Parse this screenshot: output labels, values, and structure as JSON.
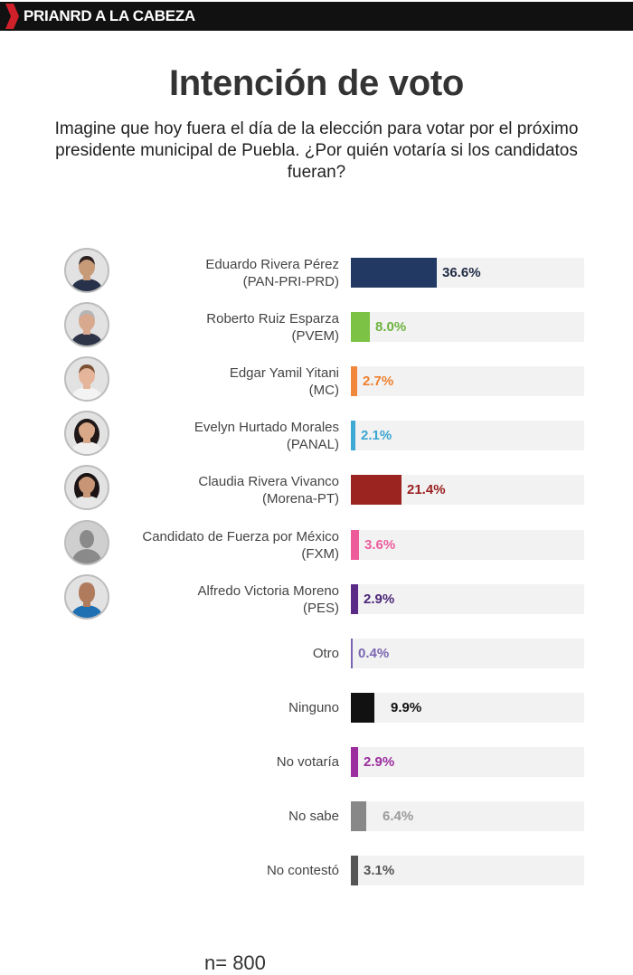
{
  "header": {
    "section_label": "PRIANRD A LA CABEZA"
  },
  "title": "Intención de voto",
  "question": "Imagine que hoy fuera el día de la elección para votar por el próximo presidente municipal de Puebla. ¿Por quién votaría si los candidatos fueran?",
  "footnote": "n= 800",
  "colors": {
    "accent": "#d0202a",
    "header_bg": "#111111",
    "track": "#f2f2f2"
  },
  "chart_data": {
    "type": "bar",
    "orientation": "horizontal",
    "xlim": [
      0,
      100
    ],
    "items": [
      {
        "line1": "Eduardo Rivera Pérez",
        "line2": "(PAN-PRI-PRD)",
        "value": 36.6,
        "label": "36.6%",
        "color": "#223a63",
        "text_color": "#1f2a44",
        "photo": "avatar-man-dark-hair"
      },
      {
        "line1": "Roberto Ruiz Esparza",
        "line2": "(PVEM)",
        "value": 8.0,
        "label": "8.0%",
        "color": "#7cc244",
        "text_color": "#6db33f",
        "photo": "avatar-man-gray-hair"
      },
      {
        "line1": "Edgar Yamil Yitani",
        "line2": "(MC)",
        "value": 2.7,
        "label": "2.7%",
        "color": "#f0873a",
        "text_color": "#ee7f2d",
        "photo": "avatar-man-brown-hair"
      },
      {
        "line1": "Evelyn Hurtado Morales",
        "line2": "(PANAL)",
        "value": 2.1,
        "label": "2.1%",
        "color": "#3fa9d6",
        "text_color": "#3aa6d2",
        "photo": "avatar-woman-long-hair"
      },
      {
        "line1": "Claudia Rivera Vivanco",
        "line2": "(Morena-PT)",
        "value": 21.4,
        "label": "21.4%",
        "color": "#9c2420",
        "text_color": "#9a1f1f",
        "photo": "avatar-woman-dark-hair"
      },
      {
        "line1": "Candidato de Fuerza por México",
        "line2": "(FXM)",
        "value": 3.6,
        "label": "3.6%",
        "color": "#ee5b9b",
        "text_color": "#ec5c9c",
        "photo": "avatar-placeholder-silhouette"
      },
      {
        "line1": "Alfredo Victoria Moreno",
        "line2": "(PES)",
        "value": 2.9,
        "label": "2.9%",
        "color": "#5b2a86",
        "text_color": "#4b2778",
        "photo": "avatar-man-bald"
      },
      {
        "line1": "Otro",
        "line2": "",
        "value": 0.4,
        "label": "0.4%",
        "color": "#7a66b3",
        "text_color": "#7a66b3",
        "photo": ""
      },
      {
        "line1": "Ninguno",
        "line2": "",
        "value": 9.9,
        "label": "9.9%",
        "color": "#111111",
        "text_color": "#111111",
        "photo": ""
      },
      {
        "line1": "No votaría",
        "line2": "",
        "value": 2.9,
        "label": "2.9%",
        "color": "#9b2d9e",
        "text_color": "#9b2d9e",
        "photo": ""
      },
      {
        "line1": "No sabe",
        "line2": "",
        "value": 6.4,
        "label": "6.4%",
        "color": "#888888",
        "text_color": "#9a9a9a",
        "photo": ""
      },
      {
        "line1": "No contestó",
        "line2": "",
        "value": 3.1,
        "label": "3.1%",
        "color": "#555555",
        "text_color": "#555555",
        "photo": ""
      }
    ]
  }
}
